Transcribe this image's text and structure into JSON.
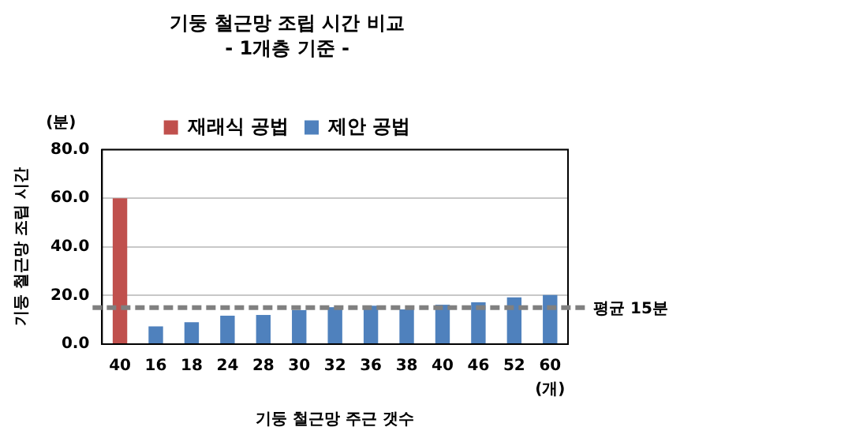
{
  "chart_data": {
    "type": "bar",
    "title": "기둥 철근망 조립 시간 비교",
    "subtitle": "- 1개층 기준 -",
    "xlabel": "기둥 철근망 주근 갯수",
    "ylabel": "기둥 철근망 조립 시간",
    "categories": [
      "40",
      "16",
      "18",
      "24",
      "28",
      "30",
      "32",
      "36",
      "38",
      "40",
      "46",
      "52",
      "60"
    ],
    "series": [
      {
        "name": "재래식 공법",
        "color": "#c0504d",
        "values": [
          60,
          null,
          null,
          null,
          null,
          null,
          null,
          null,
          null,
          null,
          null,
          null,
          null
        ]
      },
      {
        "name": "제안 공법",
        "color": "#4f81bd",
        "values": [
          null,
          7.3,
          9.0,
          11.7,
          12.0,
          14.0,
          15.2,
          15.8,
          14.3,
          16.2,
          17.2,
          19.2,
          20.2
        ]
      }
    ],
    "ylim": [
      0,
      80
    ],
    "yticks": [
      {
        "value": 0,
        "label": "0.0"
      },
      {
        "value": 20,
        "label": "20.0"
      },
      {
        "value": 40,
        "label": "40.0"
      },
      {
        "value": 60,
        "label": "60.0"
      },
      {
        "value": 80,
        "label": "80.0"
      }
    ],
    "grid": "y",
    "legend": "top",
    "ref_lines": [
      {
        "axis": "y",
        "value": 15,
        "label": "평균 15분",
        "color": "#808080",
        "line_style": "dashed"
      }
    ],
    "annotations": [
      "(분)",
      "(개)"
    ]
  }
}
